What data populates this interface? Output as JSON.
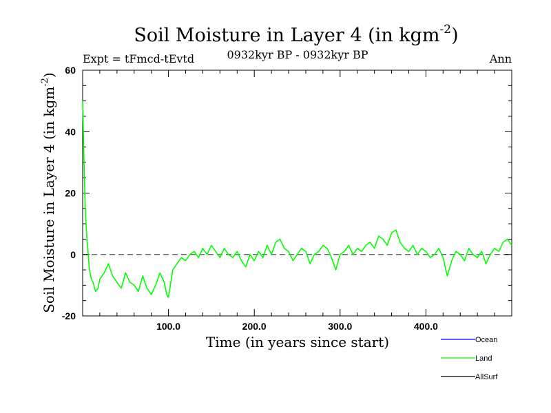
{
  "chart_data": {
    "type": "line",
    "title": "Soil Moisture in Layer 4 (in kgm",
    "title_superscript": "-2",
    "title_close": ")",
    "subtitle_left": "Expt = tFmcd-tEvtd",
    "subtitle_center": "0932kyr BP - 0932kyr BP",
    "subtitle_right": "Ann",
    "xlabel": "Time (in years since start)",
    "ylabel": "Soil Moisture in Layer 4 (in kgm",
    "ylabel_superscript": "-2",
    "ylabel_close": ")",
    "xlim": [
      0,
      500
    ],
    "ylim": [
      -20,
      60
    ],
    "x_ticks": [
      {
        "value": 100,
        "label": "100.0"
      },
      {
        "value": 200,
        "label": "200.0"
      },
      {
        "value": 300,
        "label": "300.0"
      },
      {
        "value": 400,
        "label": "400.0"
      }
    ],
    "y_ticks": [
      {
        "value": -20,
        "label": "-20"
      },
      {
        "value": 0,
        "label": "0"
      },
      {
        "value": 20,
        "label": "20"
      },
      {
        "value": 40,
        "label": "40"
      },
      {
        "value": 60,
        "label": "60"
      }
    ],
    "zero_line": {
      "value": 0,
      "style": "dashed"
    },
    "legend": [
      {
        "name": "Ocean",
        "color": "#0000ff"
      },
      {
        "name": "Land",
        "color": "#00ff00"
      },
      {
        "name": "AllSurf",
        "color": "#000000"
      }
    ],
    "series": [
      {
        "name": "Land",
        "color": "#00ff00",
        "x": [
          0,
          1,
          2,
          3,
          4,
          5,
          6,
          7,
          8,
          10,
          12,
          15,
          18,
          20,
          25,
          30,
          35,
          40,
          45,
          50,
          55,
          60,
          65,
          70,
          75,
          80,
          85,
          90,
          95,
          98,
          100,
          105,
          110,
          115,
          120,
          125,
          130,
          135,
          140,
          145,
          150,
          155,
          160,
          165,
          170,
          175,
          180,
          185,
          190,
          195,
          200,
          205,
          210,
          215,
          220,
          225,
          230,
          235,
          240,
          245,
          250,
          255,
          260,
          265,
          270,
          275,
          280,
          285,
          290,
          295,
          300,
          305,
          310,
          315,
          320,
          325,
          330,
          335,
          340,
          345,
          350,
          355,
          360,
          365,
          370,
          375,
          380,
          385,
          390,
          395,
          400,
          405,
          410,
          415,
          420,
          425,
          430,
          435,
          440,
          445,
          450,
          455,
          460,
          465,
          470,
          475,
          480,
          485,
          490,
          495,
          500
        ],
        "y": [
          50,
          38,
          25,
          16,
          10,
          5,
          2,
          -2,
          -5,
          -8,
          -9,
          -12,
          -11,
          -8,
          -6,
          -3,
          -7,
          -9,
          -11,
          -6,
          -9,
          -10,
          -12,
          -7,
          -11,
          -13,
          -10,
          -6,
          -9,
          -13,
          -14,
          -5,
          -3,
          -1,
          -2,
          0,
          1,
          -1,
          2,
          0,
          3,
          1,
          -1,
          2,
          0,
          -1,
          1,
          -2,
          -4,
          0,
          -2,
          1,
          -1,
          3,
          0,
          4,
          5,
          2,
          1,
          -2,
          0,
          2,
          1,
          -3,
          0,
          1,
          3,
          2,
          -1,
          -5,
          0,
          1,
          3,
          0,
          2,
          1,
          3,
          4,
          2,
          6,
          5,
          3,
          7,
          8,
          4,
          2,
          1,
          3,
          0,
          2,
          1,
          -1,
          0,
          2,
          -1,
          -7,
          -2,
          1,
          0,
          -2,
          2,
          0,
          -1,
          1,
          -3,
          0,
          2,
          1,
          4,
          5,
          3
        ]
      }
    ]
  }
}
